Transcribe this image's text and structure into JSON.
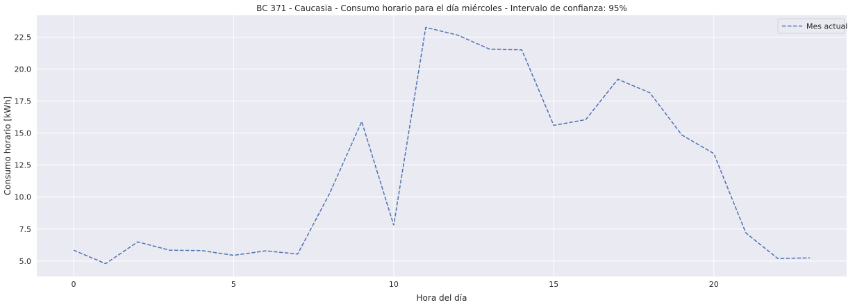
{
  "chart_data": {
    "type": "line",
    "title": "BC 371 - Caucasia - Consumo horario para el día miércoles - Intervalo de confianza: 95%",
    "xlabel": "Hora del día",
    "ylabel": "Consumo horario [kWh]",
    "x": [
      0,
      1,
      2,
      3,
      4,
      5,
      6,
      7,
      8,
      9,
      10,
      11,
      12,
      13,
      14,
      15,
      16,
      17,
      18,
      19,
      20,
      21,
      22,
      23
    ],
    "series": [
      {
        "name": "Mes actual",
        "color": "#4c72b0",
        "line_style": "dashed",
        "values": [
          5.85,
          4.8,
          6.5,
          5.85,
          5.82,
          5.45,
          5.8,
          5.55,
          10.3,
          15.9,
          7.8,
          23.25,
          22.65,
          21.55,
          21.5,
          15.6,
          16.05,
          19.2,
          18.15,
          14.85,
          13.4,
          7.2,
          5.2,
          5.25
        ]
      }
    ],
    "xlim": [
      -1.15,
      24.15
    ],
    "ylim": [
      3.8,
      24.2
    ],
    "xticks": [
      0,
      5,
      10,
      15,
      20
    ],
    "xtick_labels": [
      "0",
      "5",
      "10",
      "15",
      "20"
    ],
    "yticks": [
      5.0,
      7.5,
      10.0,
      12.5,
      15.0,
      17.5,
      20.0,
      22.5
    ],
    "ytick_labels": [
      "5.0",
      "7.5",
      "10.0",
      "12.5",
      "15.0",
      "17.5",
      "20.0",
      "22.5"
    ],
    "grid": true,
    "legend_position": "top-right",
    "background_color": "#eaeaf2",
    "grid_color": "#ffffff"
  }
}
